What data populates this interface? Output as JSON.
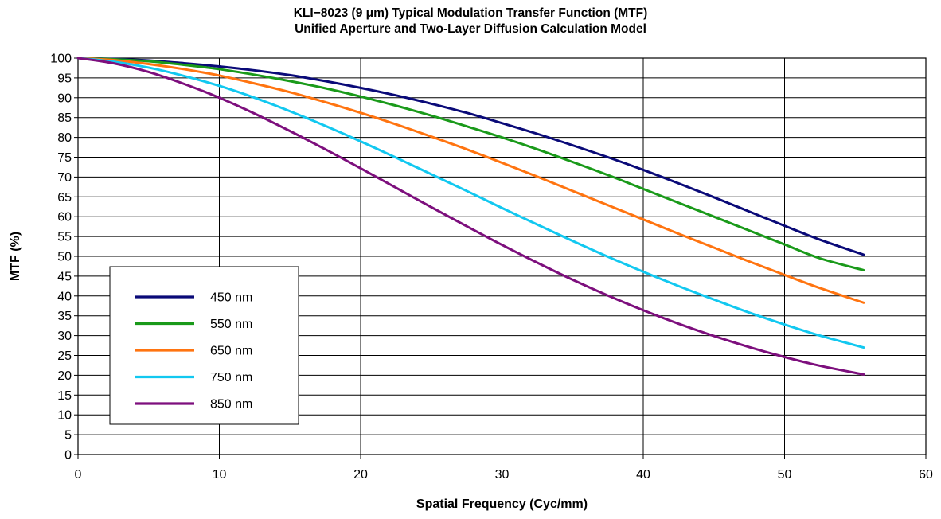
{
  "chart_data": {
    "type": "line",
    "title": "KLI−8023 (9 μm) Typical Modulation Transfer Function (MTF)",
    "subtitle": "Unified Aperture and Two-Layer Diffusion Calculation Model",
    "xlabel": "Spatial Frequency (Cyc/mm)",
    "ylabel": "MTF (%)",
    "xlim": [
      0,
      60
    ],
    "ylim": [
      0,
      100
    ],
    "xticks": [
      0,
      10,
      20,
      30,
      40,
      50,
      60
    ],
    "yticks": [
      0,
      5,
      10,
      15,
      20,
      25,
      30,
      35,
      40,
      45,
      50,
      55,
      60,
      65,
      70,
      75,
      80,
      85,
      90,
      95,
      100
    ],
    "grid": true,
    "legend_position": "left",
    "x": [
      0,
      2.5,
      5,
      7.5,
      10,
      12.5,
      15,
      17.5,
      20,
      22.5,
      25,
      27.5,
      30,
      32.5,
      35,
      37.5,
      40,
      42.5,
      45,
      47.5,
      50,
      52.5,
      55.6
    ],
    "series": [
      {
        "name": "450 nm",
        "color": "#0a0a78",
        "values": [
          100,
          99.8,
          99.4,
          98.7,
          97.9,
          96.9,
          95.7,
          94.2,
          92.5,
          90.6,
          88.5,
          86.2,
          83.6,
          80.9,
          78,
          75,
          71.8,
          68.4,
          64.9,
          61.3,
          57.7,
          54.2,
          50.4
        ]
      },
      {
        "name": "550 nm",
        "color": "#1a9a1a",
        "values": [
          100,
          99.7,
          99.2,
          98.3,
          97.2,
          95.8,
          94.2,
          92.4,
          90.3,
          88,
          85.5,
          82.8,
          80,
          77,
          73.8,
          70.5,
          67,
          63.5,
          60,
          56.5,
          53,
          49.5,
          46.5
        ]
      },
      {
        "name": "650 nm",
        "color": "#ff7410",
        "values": [
          100,
          99.5,
          98.5,
          97.2,
          95.6,
          93.6,
          91.4,
          88.9,
          86.2,
          83.3,
          80.2,
          77.0,
          73.6,
          70.1,
          66.5,
          62.9,
          59.3,
          55.7,
          52.2,
          48.7,
          45.3,
          42,
          38.3
        ]
      },
      {
        "name": "750 nm",
        "color": "#12c8f0",
        "values": [
          100,
          99.1,
          97.6,
          95.5,
          93,
          90,
          86.6,
          82.9,
          79,
          74.9,
          70.7,
          66.5,
          62.2,
          58,
          53.9,
          49.9,
          46.1,
          42.5,
          39.1,
          35.8,
          32.8,
          30,
          27
        ]
      },
      {
        "name": "850 nm",
        "color": "#7d0f7d",
        "values": [
          100,
          98.7,
          96.5,
          93.5,
          90,
          86,
          81.6,
          77,
          72.2,
          67.3,
          62.4,
          57.6,
          52.9,
          48.4,
          44.1,
          40.1,
          36.4,
          33,
          29.9,
          27.1,
          24.6,
          22.4,
          20.2
        ]
      }
    ]
  },
  "colors": {
    "background": "#ffffff",
    "grid": "#000000",
    "axis": "#000000"
  }
}
